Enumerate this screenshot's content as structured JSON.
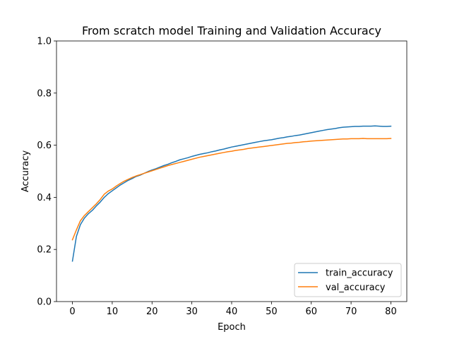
{
  "chart_data": {
    "type": "line",
    "title": "From scratch model Training and Validation Accuracy",
    "xlabel": "Epoch",
    "ylabel": "Accuracy",
    "xlim": [
      -4,
      84
    ],
    "ylim": [
      0.0,
      1.0
    ],
    "xticks": [
      0,
      10,
      20,
      30,
      40,
      50,
      60,
      70,
      80
    ],
    "yticks": [
      0.0,
      0.2,
      0.4,
      0.6,
      0.8,
      1.0
    ],
    "ytick_labels": [
      "0.0",
      "0.2",
      "0.4",
      "0.6",
      "0.8",
      "1.0"
    ],
    "grid": false,
    "legend": "lower right",
    "series": [
      {
        "name": "train_accuracy",
        "color": "#1f77b4",
        "values": [
          0.155,
          0.25,
          0.295,
          0.32,
          0.337,
          0.35,
          0.367,
          0.382,
          0.4,
          0.414,
          0.425,
          0.436,
          0.447,
          0.456,
          0.465,
          0.472,
          0.48,
          0.485,
          0.492,
          0.499,
          0.505,
          0.51,
          0.516,
          0.522,
          0.527,
          0.533,
          0.538,
          0.544,
          0.548,
          0.552,
          0.557,
          0.561,
          0.565,
          0.568,
          0.571,
          0.575,
          0.578,
          0.582,
          0.585,
          0.589,
          0.593,
          0.596,
          0.599,
          0.602,
          0.605,
          0.608,
          0.611,
          0.614,
          0.617,
          0.619,
          0.621,
          0.624,
          0.627,
          0.629,
          0.632,
          0.634,
          0.637,
          0.639,
          0.642,
          0.645,
          0.648,
          0.651,
          0.654,
          0.657,
          0.66,
          0.662,
          0.664,
          0.667,
          0.669,
          0.67,
          0.671,
          0.672,
          0.672,
          0.673,
          0.673,
          0.673,
          0.674,
          0.673,
          0.672,
          0.672,
          0.673
        ]
      },
      {
        "name": "val_accuracy",
        "color": "#ff7f0e",
        "values": [
          0.237,
          0.275,
          0.31,
          0.33,
          0.345,
          0.36,
          0.375,
          0.392,
          0.412,
          0.424,
          0.432,
          0.443,
          0.453,
          0.462,
          0.469,
          0.476,
          0.482,
          0.487,
          0.492,
          0.497,
          0.502,
          0.507,
          0.512,
          0.517,
          0.522,
          0.526,
          0.53,
          0.534,
          0.538,
          0.542,
          0.546,
          0.55,
          0.554,
          0.557,
          0.56,
          0.563,
          0.566,
          0.569,
          0.572,
          0.575,
          0.577,
          0.58,
          0.582,
          0.584,
          0.587,
          0.589,
          0.591,
          0.593,
          0.595,
          0.597,
          0.599,
          0.601,
          0.603,
          0.605,
          0.607,
          0.608,
          0.61,
          0.611,
          0.613,
          0.614,
          0.616,
          0.617,
          0.618,
          0.619,
          0.62,
          0.621,
          0.622,
          0.623,
          0.624,
          0.624,
          0.625,
          0.625,
          0.625,
          0.626,
          0.625,
          0.625,
          0.625,
          0.625,
          0.625,
          0.625,
          0.626
        ]
      }
    ]
  }
}
